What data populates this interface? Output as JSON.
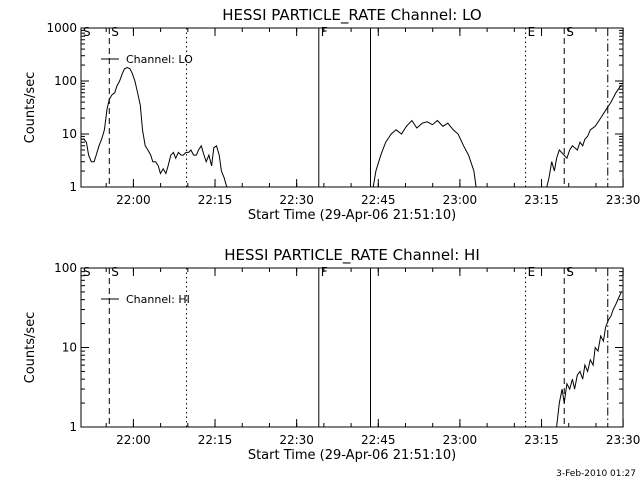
{
  "footer_stamp": "3-Feb-2010 01:27",
  "chart_data": [
    {
      "type": "line",
      "title": "HESSI PARTICLE_RATE Channel: LO",
      "xlabel": "Start Time (29-Apr-06 21:51:10)",
      "ylabel": "Counts/sec",
      "yscale": "log",
      "ylim": [
        1,
        1000
      ],
      "xlim_min": [
        -0.8,
        98.8
      ],
      "x_ticks_min": [
        8.83,
        23.83,
        38.83,
        53.83,
        68.83,
        83.83,
        98.83
      ],
      "x_tick_labels": [
        "22:00",
        "22:15",
        "22:30",
        "22:45",
        "23:00",
        "23:15",
        "23:30"
      ],
      "y_ticks": [
        1,
        10,
        100,
        1000
      ],
      "y_tick_labels": [
        "1",
        "10",
        "100",
        "1000"
      ],
      "legend": {
        "label": "Channel: LO",
        "placement": "top-left"
      },
      "markers": [
        {
          "x_min": 4.4,
          "style": "dashed",
          "label": "S"
        },
        {
          "x_min": 18.6,
          "style": "dotted",
          "label": ""
        },
        {
          "x_min": 42.9,
          "style": "solid",
          "label": "F"
        },
        {
          "x_min": 52.4,
          "style": "solid",
          "label": ""
        },
        {
          "x_min": 80.9,
          "style": "dotted",
          "label": "E"
        },
        {
          "x_min": 88.0,
          "style": "dashed",
          "label": "S"
        },
        {
          "x_min": 96.0,
          "style": "dashdot",
          "label": ""
        }
      ],
      "corner_label": "S",
      "series": [
        {
          "segments": [
            [
              [
                -0.8,
                8
              ],
              [
                -0.3,
                8
              ],
              [
                0.2,
                7
              ],
              [
                0.6,
                4
              ],
              [
                1.1,
                3
              ],
              [
                1.6,
                3
              ],
              [
                2.0,
                4
              ],
              [
                2.5,
                6
              ],
              [
                3.0,
                8
              ],
              [
                3.5,
                12
              ],
              [
                4.0,
                30
              ],
              [
                4.4,
                45
              ],
              [
                4.9,
                55
              ],
              [
                5.4,
                60
              ],
              [
                5.8,
                80
              ],
              [
                6.3,
                100
              ],
              [
                6.8,
                140
              ],
              [
                7.2,
                170
              ],
              [
                7.7,
                180
              ],
              [
                8.2,
                170
              ],
              [
                8.6,
                140
              ],
              [
                9.1,
                100
              ],
              [
                9.6,
                60
              ],
              [
                10.1,
                35
              ],
              [
                10.5,
                12
              ],
              [
                11.0,
                6
              ],
              [
                11.5,
                5
              ],
              [
                12.0,
                4
              ],
              [
                12.4,
                3
              ],
              [
                12.9,
                3
              ],
              [
                13.4,
                2.5
              ],
              [
                13.8,
                1.8
              ],
              [
                14.3,
                2.2
              ],
              [
                14.8,
                1.8
              ],
              [
                15.2,
                2.5
              ],
              [
                15.7,
                4
              ],
              [
                16.2,
                4.5
              ],
              [
                16.6,
                3.5
              ],
              [
                17.1,
                4.5
              ],
              [
                17.6,
                4
              ],
              [
                18.0,
                4
              ],
              [
                18.5,
                4.5
              ],
              [
                19.0,
                4.5
              ],
              [
                19.4,
                5
              ],
              [
                19.9,
                4
              ],
              [
                20.4,
                4
              ],
              [
                20.8,
                5
              ],
              [
                21.3,
                6
              ],
              [
                21.8,
                4
              ],
              [
                22.2,
                3
              ],
              [
                22.7,
                4
              ],
              [
                23.2,
                2.5
              ],
              [
                23.6,
                5.5
              ],
              [
                24.1,
                6
              ],
              [
                24.6,
                4
              ],
              [
                25.0,
                2
              ],
              [
                25.5,
                1.5
              ],
              [
                26.0,
                1
              ]
            ],
            [
              [
                52.9,
                1
              ],
              [
                53.4,
                2
              ],
              [
                54.3,
                4
              ],
              [
                55.2,
                7
              ],
              [
                56.2,
                10
              ],
              [
                57.1,
                12
              ],
              [
                58.1,
                10
              ],
              [
                59.0,
                14
              ],
              [
                60.0,
                18
              ],
              [
                60.9,
                13
              ],
              [
                61.9,
                16
              ],
              [
                62.8,
                17
              ],
              [
                63.8,
                15
              ],
              [
                64.7,
                18
              ],
              [
                65.7,
                14
              ],
              [
                66.6,
                16
              ],
              [
                67.6,
                12
              ],
              [
                68.5,
                10
              ],
              [
                69.5,
                6
              ],
              [
                70.4,
                4
              ],
              [
                71.4,
                2
              ],
              [
                71.8,
                1
              ]
            ],
            [
              [
                84.8,
                1
              ],
              [
                85.2,
                1.5
              ],
              [
                85.7,
                3
              ],
              [
                86.2,
                2
              ],
              [
                86.6,
                3.5
              ],
              [
                87.1,
                5
              ],
              [
                88.5,
                3.5
              ],
              [
                89.0,
                5
              ],
              [
                89.5,
                6
              ],
              [
                90.4,
                5
              ],
              [
                90.9,
                7
              ],
              [
                91.4,
                6
              ],
              [
                91.8,
                8
              ],
              [
                92.3,
                9
              ],
              [
                92.8,
                12
              ],
              [
                93.7,
                14
              ],
              [
                94.7,
                20
              ],
              [
                95.6,
                28
              ],
              [
                96.6,
                40
              ],
              [
                97.5,
                60
              ],
              [
                98.5,
                85
              ]
            ]
          ]
        }
      ]
    },
    {
      "type": "line",
      "title": "HESSI PARTICLE_RATE Channel: HI",
      "xlabel": "Start Time (29-Apr-06 21:51:10)",
      "ylabel": "Counts/sec",
      "yscale": "log",
      "ylim": [
        1,
        100
      ],
      "xlim_min": [
        -0.8,
        98.8
      ],
      "x_ticks_min": [
        8.83,
        23.83,
        38.83,
        53.83,
        68.83,
        83.83,
        98.83
      ],
      "x_tick_labels": [
        "22:00",
        "22:15",
        "22:30",
        "22:45",
        "23:00",
        "23:15",
        "23:30"
      ],
      "y_ticks": [
        1,
        10,
        100
      ],
      "y_tick_labels": [
        "1",
        "10",
        "100"
      ],
      "legend": {
        "label": "Channel: HI",
        "placement": "top-left"
      },
      "markers": [
        {
          "x_min": 4.4,
          "style": "dashed",
          "label": "S"
        },
        {
          "x_min": 18.6,
          "style": "dotted",
          "label": ""
        },
        {
          "x_min": 42.9,
          "style": "solid",
          "label": "F"
        },
        {
          "x_min": 52.4,
          "style": "solid",
          "label": ""
        },
        {
          "x_min": 80.9,
          "style": "dotted",
          "label": "E"
        },
        {
          "x_min": 88.0,
          "style": "dashed",
          "label": "S"
        },
        {
          "x_min": 96.0,
          "style": "dashdot",
          "label": ""
        }
      ],
      "corner_label": "S",
      "series": [
        {
          "segments": [
            [
              [
                86.6,
                1
              ],
              [
                87.1,
                2
              ],
              [
                87.6,
                3
              ],
              [
                88.0,
                2
              ],
              [
                88.5,
                3.5
              ],
              [
                89.0,
                3
              ],
              [
                89.5,
                4
              ],
              [
                89.9,
                3
              ],
              [
                90.4,
                4.5
              ],
              [
                90.9,
                5
              ],
              [
                91.4,
                4
              ],
              [
                91.8,
                6
              ],
              [
                92.3,
                5
              ],
              [
                92.8,
                7
              ],
              [
                93.3,
                6
              ],
              [
                93.7,
                10
              ],
              [
                94.2,
                9
              ],
              [
                94.7,
                14
              ],
              [
                95.2,
                12
              ],
              [
                95.6,
                18
              ],
              [
                96.1,
                22
              ],
              [
                96.6,
                25
              ],
              [
                97.0,
                30
              ],
              [
                97.5,
                35
              ],
              [
                98.0,
                42
              ],
              [
                98.5,
                50
              ]
            ]
          ]
        }
      ]
    }
  ]
}
